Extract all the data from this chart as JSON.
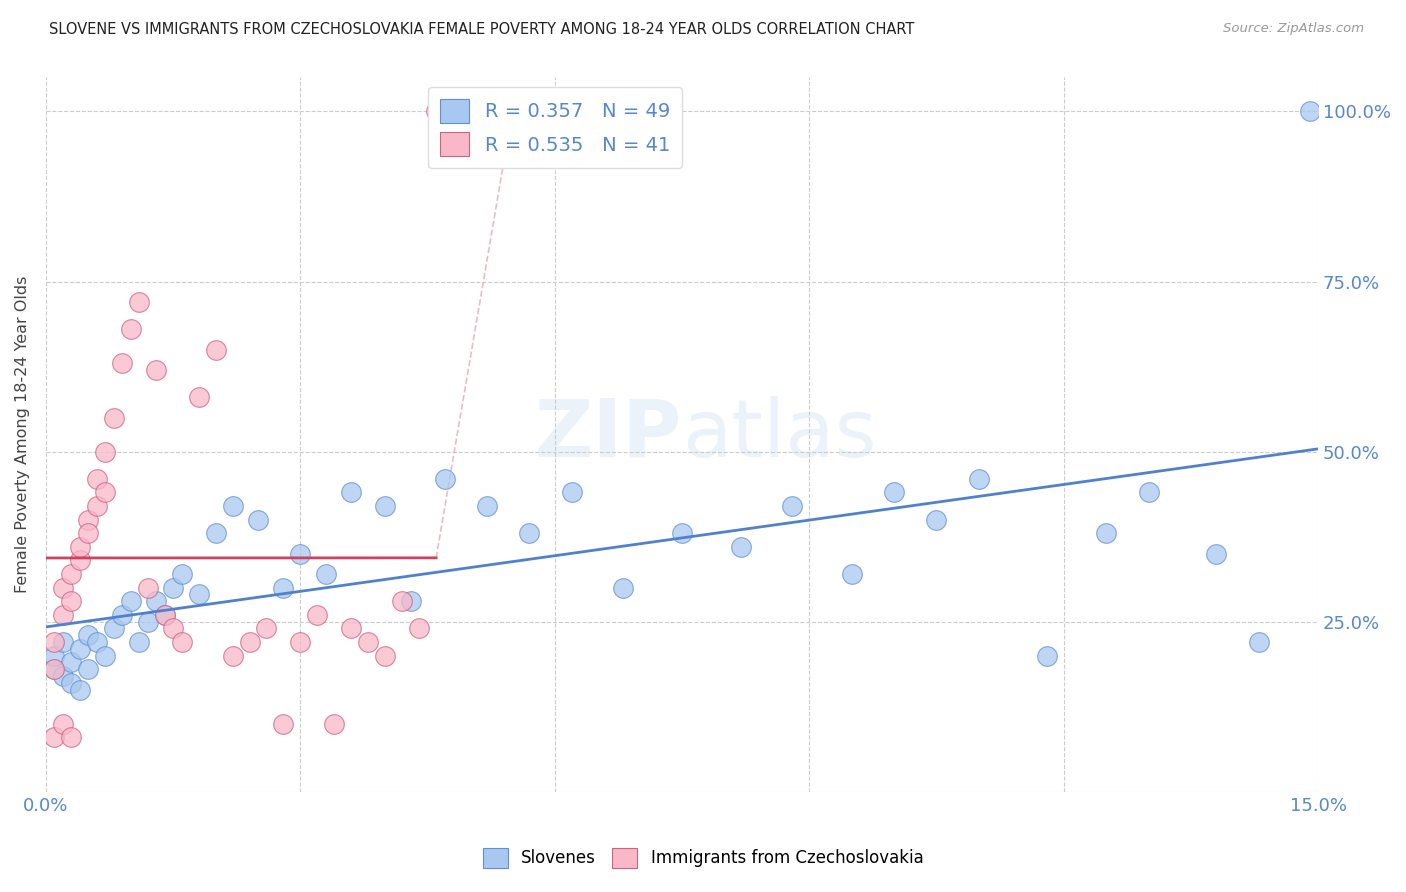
{
  "title": "SLOVENE VS IMMIGRANTS FROM CZECHOSLOVAKIA FEMALE POVERTY AMONG 18-24 YEAR OLDS CORRELATION CHART",
  "source": "Source: ZipAtlas.com",
  "ylabel": "Female Poverty Among 18-24 Year Olds",
  "slovenes_color": "#a8c8f0",
  "slovenes_edge": "#6090d0",
  "immigrants_color": "#f8b8c8",
  "immigrants_edge": "#d06080",
  "line_slovenes_color": "#5080d0",
  "line_immigrants_color": "#d04060",
  "axis_label_color": "#5588cc",
  "R_slovenes": 0.357,
  "N_slovenes": 49,
  "R_immigrants": 0.535,
  "N_immigrants": 41,
  "slovenes_x": [
    0.001,
    0.001,
    0.002,
    0.002,
    0.003,
    0.003,
    0.004,
    0.004,
    0.005,
    0.005,
    0.006,
    0.007,
    0.008,
    0.009,
    0.01,
    0.011,
    0.012,
    0.013,
    0.014,
    0.015,
    0.016,
    0.018,
    0.02,
    0.022,
    0.025,
    0.028,
    0.03,
    0.033,
    0.036,
    0.04,
    0.043,
    0.047,
    0.052,
    0.057,
    0.062,
    0.068,
    0.075,
    0.082,
    0.088,
    0.095,
    0.1,
    0.105,
    0.11,
    0.118,
    0.125,
    0.13,
    0.138,
    0.143,
    0.149
  ],
  "slovenes_y": [
    0.18,
    0.2,
    0.17,
    0.22,
    0.16,
    0.19,
    0.15,
    0.21,
    0.18,
    0.23,
    0.22,
    0.2,
    0.24,
    0.26,
    0.28,
    0.22,
    0.25,
    0.28,
    0.26,
    0.3,
    0.32,
    0.29,
    0.38,
    0.42,
    0.4,
    0.3,
    0.35,
    0.32,
    0.44,
    0.42,
    0.28,
    0.46,
    0.42,
    0.38,
    0.44,
    0.3,
    0.38,
    0.36,
    0.42,
    0.32,
    0.44,
    0.4,
    0.46,
    0.2,
    0.38,
    0.44,
    0.35,
    0.22,
    1.0
  ],
  "immigrants_x": [
    0.001,
    0.001,
    0.001,
    0.002,
    0.002,
    0.002,
    0.003,
    0.003,
    0.003,
    0.004,
    0.004,
    0.005,
    0.005,
    0.006,
    0.006,
    0.007,
    0.007,
    0.008,
    0.009,
    0.01,
    0.011,
    0.012,
    0.013,
    0.014,
    0.015,
    0.016,
    0.018,
    0.02,
    0.022,
    0.024,
    0.026,
    0.028,
    0.03,
    0.032,
    0.034,
    0.036,
    0.038,
    0.04,
    0.042,
    0.044,
    0.046
  ],
  "immigrants_y": [
    0.18,
    0.22,
    0.08,
    0.26,
    0.3,
    0.1,
    0.28,
    0.32,
    0.08,
    0.34,
    0.36,
    0.4,
    0.38,
    0.42,
    0.46,
    0.44,
    0.5,
    0.55,
    0.63,
    0.68,
    0.72,
    0.3,
    0.62,
    0.26,
    0.24,
    0.22,
    0.58,
    0.65,
    0.2,
    0.22,
    0.24,
    0.1,
    0.22,
    0.26,
    0.1,
    0.24,
    0.22,
    0.2,
    0.28,
    0.24,
    1.0
  ],
  "xlim": [
    0.0,
    0.15
  ],
  "ylim": [
    0.0,
    1.05
  ],
  "xticks": [
    0.0,
    0.03,
    0.06,
    0.09,
    0.12,
    0.15
  ],
  "yticks": [
    0.0,
    0.25,
    0.5,
    0.75,
    1.0
  ]
}
